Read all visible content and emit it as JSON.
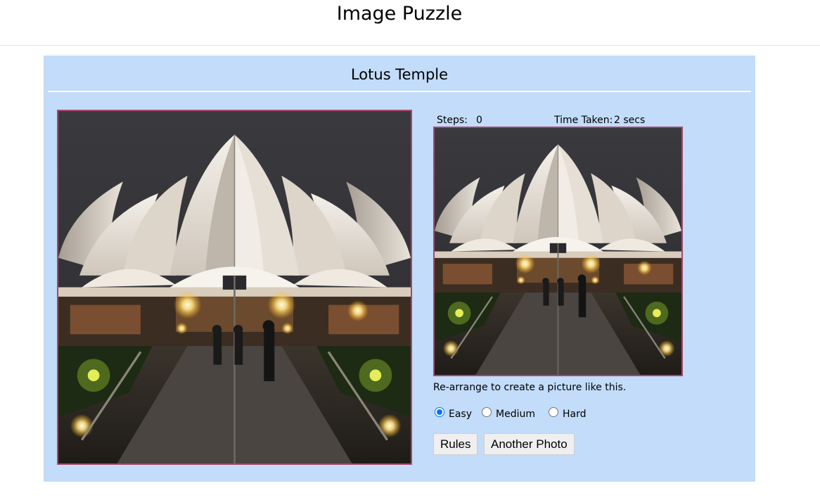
{
  "page": {
    "title": "Image Puzzle"
  },
  "puzzle": {
    "title": "Lotus Temple",
    "tile_order": [
      0,
      1,
      2,
      3,
      4,
      5,
      6,
      7,
      8
    ]
  },
  "stats": {
    "steps_label": "Steps:",
    "steps_value": "0",
    "time_label": "Time Taken:",
    "time_value": "2 secs"
  },
  "hint": "Re-arrange to create a picture like this.",
  "levels": {
    "options": [
      "Easy",
      "Medium",
      "Hard"
    ],
    "selected": "Easy"
  },
  "buttons": {
    "rules": "Rules",
    "another_photo": "Another Photo"
  },
  "colors": {
    "panel_bg": "#c2dcfa",
    "frame_border": "#a8476a",
    "radio_accent": "#0075ff"
  }
}
